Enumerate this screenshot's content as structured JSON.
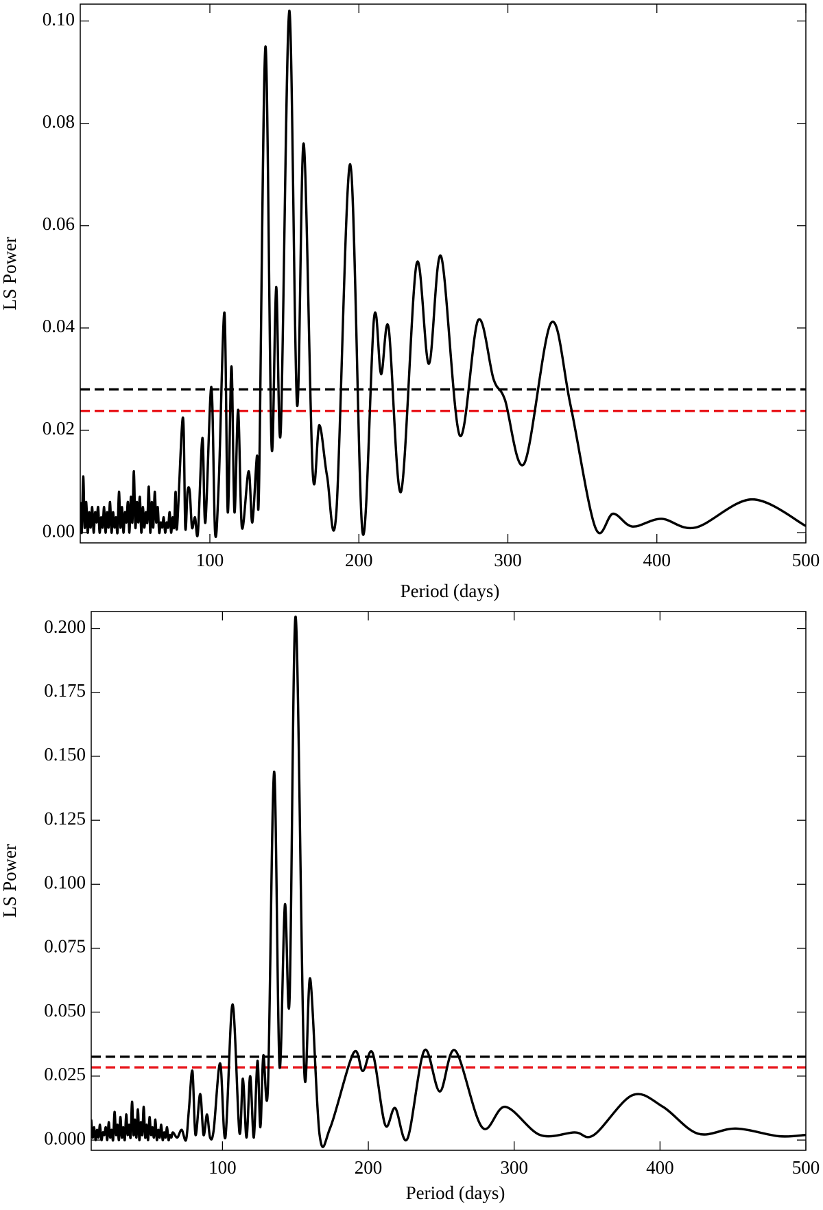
{
  "chart_data": [
    {
      "type": "line",
      "xlabel": "Period (days)",
      "ylabel": "LS Power",
      "color": "#000000",
      "xlim": [
        13,
        500
      ],
      "ylim": [
        -0.002,
        0.1033
      ],
      "xticks": [
        100,
        200,
        300,
        400,
        500
      ],
      "yticks": [
        {
          "value": 0,
          "label": "0.00"
        },
        0.02,
        0.04,
        0.06,
        0.08,
        {
          "value": 0.1,
          "label": "0.10"
        }
      ],
      "thresholds": [
        {
          "value": 0.028,
          "color": "#000000"
        },
        {
          "value": 0.0238,
          "color": "#e8141a"
        }
      ],
      "x": [
        13,
        14,
        15,
        16,
        17,
        18,
        19,
        20,
        21,
        22,
        23,
        24,
        25,
        26,
        27,
        28,
        29,
        30,
        31,
        32,
        33,
        34,
        35,
        36,
        37,
        38,
        39,
        40,
        41,
        42,
        43,
        44,
        45,
        46,
        47,
        48,
        49,
        50,
        51,
        52,
        53,
        54,
        55,
        56,
        57,
        58,
        59,
        60,
        61,
        62,
        63,
        64,
        65,
        66,
        67,
        68,
        69,
        70,
        71,
        72,
        73,
        74,
        75,
        76,
        77,
        78,
        81.9,
        83.5,
        85,
        86.5,
        88,
        90,
        92,
        95,
        97,
        101,
        103.5,
        106,
        109.8,
        112,
        114.5,
        116.5,
        119,
        121.5,
        126,
        128.5,
        131.6,
        133,
        137.3,
        141.4,
        144.5,
        147.6,
        153.3,
        158.5,
        163,
        169,
        173.5,
        178.7,
        184.9,
        194.2,
        202.5,
        210.2,
        214.9,
        220,
        228.3,
        238.7,
        247,
        255.2,
        267.7,
        280,
        290.4,
        298,
        311,
        329,
        342,
        358.7,
        370.6,
        383.6,
        403,
        426,
        463.8,
        500
      ],
      "values": [
        0.006,
        0.0,
        0.011,
        0.001,
        0.006,
        0.0,
        0.004,
        0.001,
        0.005,
        0.0,
        0.004,
        0.002,
        0.005,
        0.0,
        0.003,
        0.001,
        0.005,
        0.0,
        0.004,
        0.001,
        0.006,
        0.0,
        0.004,
        0.001,
        0.003,
        0.0,
        0.008,
        0.001,
        0.005,
        0.0,
        0.004,
        0.002,
        0.006,
        0.0,
        0.007,
        0.002,
        0.012,
        0.001,
        0.006,
        0.002,
        0.007,
        0.0,
        0.005,
        0.001,
        0.004,
        0.002,
        0.009,
        0.0,
        0.006,
        0.001,
        0.008,
        0.002,
        0.005,
        0.0,
        0.002,
        0.001,
        0.003,
        0.0,
        0.002,
        0.001,
        0.004,
        0.0,
        0.003,
        0.001,
        0.008,
        0.001,
        0.0225,
        0.001,
        0.008,
        0.008,
        0.001,
        0.003,
        0.0,
        0.0185,
        0.002,
        0.0285,
        0.0,
        0.01,
        0.043,
        0.004,
        0.0325,
        0.004,
        0.024,
        0.001,
        0.012,
        0.002,
        0.015,
        0.009,
        0.095,
        0.017,
        0.048,
        0.02,
        0.102,
        0.025,
        0.076,
        0.012,
        0.021,
        0.011,
        0.004,
        0.072,
        0.0,
        0.042,
        0.031,
        0.04,
        0.008,
        0.0525,
        0.033,
        0.054,
        0.019,
        0.0415,
        0.03,
        0.026,
        0.0135,
        0.041,
        0.025,
        0.001,
        0.0037,
        0.0012,
        0.0027,
        0.001,
        0.0065,
        0.0013
      ]
    },
    {
      "type": "line",
      "xlabel": "Period (days)",
      "ylabel": "LS Power",
      "color": "#000000",
      "xlim": [
        10,
        500
      ],
      "ylim": [
        -0.004,
        0.2066
      ],
      "xticks": [
        100,
        200,
        300,
        400,
        500
      ],
      "yticks": [
        {
          "value": 0,
          "label": "0.000"
        },
        0.025,
        {
          "value": 0.05,
          "label": "0.050"
        },
        0.075,
        {
          "value": 0.1,
          "label": "0.100"
        },
        0.125,
        {
          "value": 0.15,
          "label": "0.150"
        },
        0.175,
        {
          "value": 0.2,
          "label": "0.200"
        }
      ],
      "thresholds": [
        {
          "value": 0.0326,
          "color": "#000000"
        },
        {
          "value": 0.0284,
          "color": "#e8141a"
        }
      ],
      "x": [
        10,
        11,
        12,
        13,
        14,
        15,
        16,
        17,
        18,
        19,
        20,
        21,
        22,
        23,
        24,
        25,
        26,
        27,
        28,
        29,
        30,
        31,
        32,
        33,
        34,
        35,
        36,
        37,
        38,
        39,
        40,
        41,
        42,
        43,
        44,
        45,
        46,
        47,
        48,
        49,
        50,
        51,
        52,
        53,
        54,
        55,
        56,
        57,
        58,
        59,
        60,
        61,
        62,
        63,
        64,
        65,
        66,
        69,
        72,
        75,
        77,
        79.4,
        81.5,
        84.7,
        87,
        89.4,
        91.5,
        94,
        98.4,
        102,
        106.9,
        111.6,
        114,
        116.5,
        119,
        121.5,
        124,
        126,
        128,
        131.2,
        135.4,
        139.1,
        142.8,
        146,
        150.2,
        156,
        160.2,
        166.6,
        174,
        189.8,
        196.2,
        203,
        211.5,
        218.4,
        226.8,
        238.4,
        249,
        259.6,
        278,
        294,
        317.7,
        341.5,
        354.7,
        381,
        402,
        426,
        452,
        481.5,
        500
      ],
      "values": [
        0.008,
        0.001,
        0.005,
        0.0,
        0.004,
        0.001,
        0.006,
        0.0,
        0.003,
        0.002,
        0.005,
        0.0,
        0.007,
        0.001,
        0.004,
        0.0,
        0.011,
        0.002,
        0.006,
        0.0,
        0.009,
        0.001,
        0.005,
        0.0,
        0.01,
        0.002,
        0.006,
        0.001,
        0.015,
        0.002,
        0.008,
        0.001,
        0.012,
        0.0,
        0.007,
        0.002,
        0.013,
        0.001,
        0.006,
        0.0,
        0.009,
        0.002,
        0.005,
        0.001,
        0.008,
        0.0,
        0.004,
        0.001,
        0.006,
        0.0,
        0.003,
        0.001,
        0.005,
        0.0,
        0.002,
        0.001,
        0.003,
        0.001,
        0.004,
        0.0,
        0.012,
        0.027,
        0.002,
        0.018,
        0.002,
        0.01,
        0.001,
        0.004,
        0.03,
        0.001,
        0.053,
        0.003,
        0.024,
        0.001,
        0.025,
        0.001,
        0.031,
        0.005,
        0.033,
        0.021,
        0.144,
        0.029,
        0.092,
        0.055,
        0.2045,
        0.028,
        0.063,
        0.002,
        0.005,
        0.034,
        0.027,
        0.034,
        0.006,
        0.0125,
        0.0005,
        0.035,
        0.019,
        0.035,
        0.005,
        0.013,
        0.002,
        0.003,
        0.002,
        0.0175,
        0.013,
        0.0025,
        0.0045,
        0.0015,
        0.002
      ]
    }
  ]
}
